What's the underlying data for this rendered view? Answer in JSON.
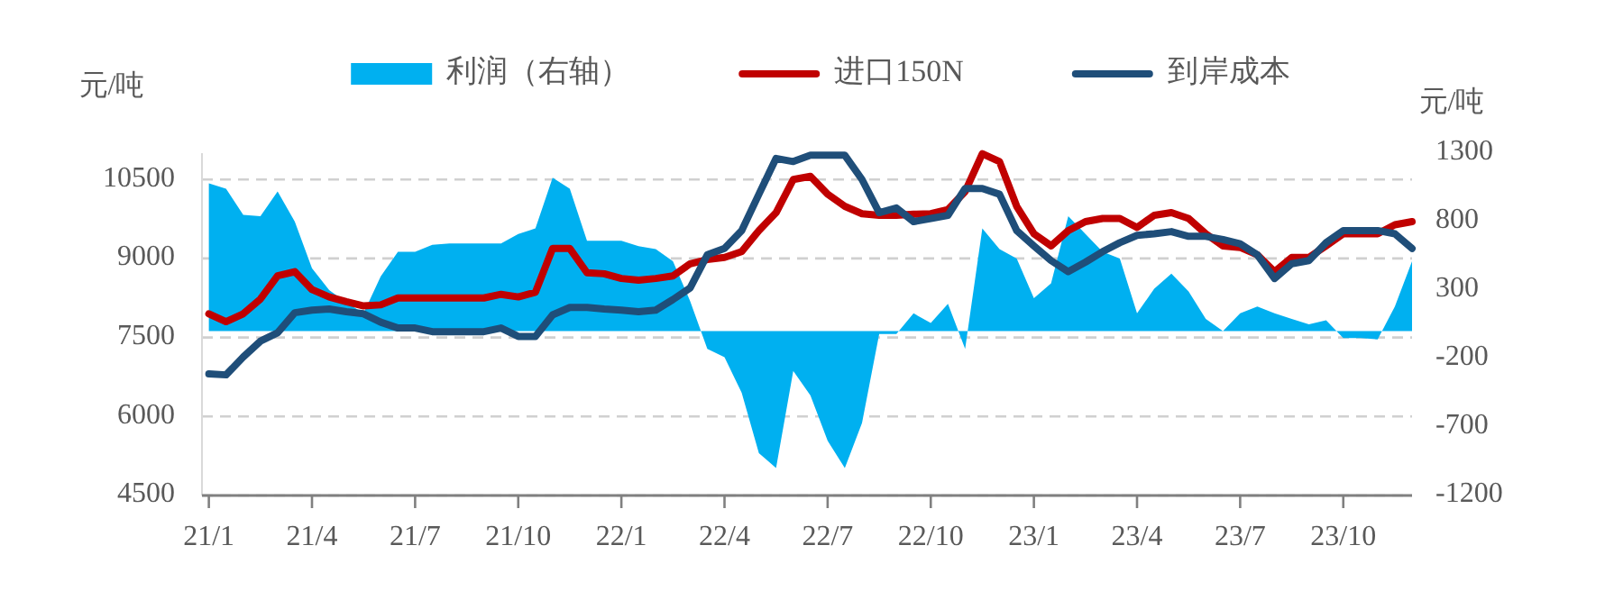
{
  "chart_data": {
    "type": "line",
    "categories": [
      "21/1",
      null,
      null,
      null,
      null,
      null,
      "21/4",
      null,
      null,
      null,
      null,
      null,
      "21/7",
      null,
      null,
      null,
      null,
      null,
      "21/10",
      null,
      null,
      null,
      null,
      null,
      "22/1",
      null,
      null,
      null,
      null,
      null,
      "22/4",
      null,
      null,
      null,
      null,
      null,
      "22/7",
      null,
      null,
      null,
      null,
      null,
      "22/10",
      null,
      null,
      null,
      null,
      null,
      "23/1",
      null,
      null,
      null,
      null,
      null,
      "23/4",
      null,
      null,
      null,
      null,
      null,
      "23/7",
      null,
      null,
      null,
      null,
      null,
      "23/10",
      null,
      null,
      null,
      null
    ],
    "series": [
      {
        "name": "利润（右轴）",
        "type": "area",
        "axis": "y2",
        "color": "#00b0f0",
        "values": [
          1080,
          1040,
          850,
          840,
          1020,
          800,
          460,
          300,
          210,
          130,
          400,
          580,
          580,
          630,
          640,
          640,
          640,
          640,
          710,
          750,
          1120,
          1040,
          660,
          660,
          660,
          620,
          600,
          510,
          220,
          -130,
          -190,
          -450,
          -890,
          -1000,
          -290,
          -470,
          -800,
          -1000,
          -670,
          -20,
          -20,
          130,
          60,
          200,
          -130,
          750,
          600,
          530,
          240,
          350,
          840,
          710,
          580,
          530,
          130,
          310,
          420,
          290,
          90,
          0,
          130,
          180,
          130,
          90,
          50,
          80,
          -50,
          -50,
          -60,
          180,
          510
        ]
      },
      {
        "name": "进口150N",
        "color": "#c00000",
        "values": [
          7950,
          7800,
          7950,
          8230,
          8670,
          8750,
          8410,
          8270,
          8180,
          8100,
          8120,
          8250,
          8250,
          8250,
          8250,
          8250,
          8250,
          8320,
          8270,
          8360,
          9190,
          9190,
          8730,
          8710,
          8620,
          8590,
          8620,
          8670,
          8900,
          8980,
          9020,
          9130,
          9530,
          9870,
          10500,
          10560,
          10220,
          9990,
          9850,
          9820,
          9820,
          9840,
          9850,
          9930,
          10270,
          10990,
          10840,
          9990,
          9470,
          9240,
          9530,
          9700,
          9760,
          9760,
          9590,
          9820,
          9870,
          9760,
          9470,
          9240,
          9210,
          9070,
          8750,
          9020,
          9020,
          9240,
          9470,
          9470,
          9470,
          9640,
          9700
        ]
      },
      {
        "name": "到岸成本",
        "color": "#1f4e79",
        "values": [
          6810,
          6790,
          7130,
          7430,
          7590,
          7970,
          8020,
          8040,
          7990,
          7950,
          7790,
          7680,
          7680,
          7610,
          7610,
          7610,
          7610,
          7680,
          7520,
          7520,
          7930,
          8070,
          8070,
          8040,
          8020,
          7990,
          8020,
          8220,
          8440,
          9070,
          9190,
          9530,
          10220,
          10900,
          10840,
          10960,
          10960,
          10960,
          10500,
          9870,
          9960,
          9700,
          9760,
          9820,
          10330,
          10330,
          10220,
          9530,
          9240,
          8960,
          8750,
          8930,
          9130,
          9300,
          9440,
          9470,
          9510,
          9420,
          9420,
          9360,
          9280,
          9070,
          8620,
          8900,
          8960,
          9300,
          9530,
          9530,
          9530,
          9470,
          9190
        ]
      }
    ],
    "ylim": [
      4500,
      11000
    ],
    "yticks": [
      4500,
      6000,
      7500,
      9000,
      10500
    ],
    "y2lim": [
      -1200,
      1300
    ],
    "y2ticks": [
      -1200,
      -700,
      -200,
      300,
      800,
      1300
    ],
    "ylabel": "元/吨",
    "y2label": "元/吨",
    "grid": "y",
    "legend": "top"
  }
}
